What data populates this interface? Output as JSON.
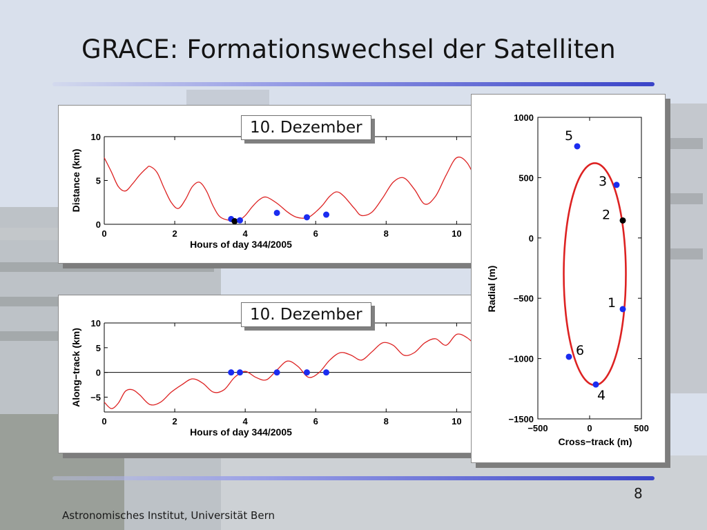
{
  "slide": {
    "title": "GRACE: Formationswechsel der Satelliten",
    "page_number": "8",
    "footer": "Astronomisches Institut, Universität Bern"
  },
  "colors": {
    "curve": "#dd2222",
    "marker_blue": "#1a2cf0",
    "marker_black": "#000000",
    "accent_rule": "#3a44c8"
  },
  "chart_data": [
    {
      "type": "line",
      "label": "10. Dezember",
      "xlabel": "Hours of day 344/2005",
      "ylabel": "Distance (km)",
      "xlim": [
        0,
        10.6
      ],
      "ylim": [
        0,
        10
      ],
      "xticks": [
        0,
        2,
        4,
        6,
        8,
        10
      ],
      "yticks": [
        0,
        5,
        10
      ],
      "grid": false,
      "series": [
        {
          "x": [
            0,
            0.2,
            0.4,
            0.6,
            0.8,
            1.0,
            1.2,
            1.3,
            1.5,
            1.7,
            1.9,
            2.1,
            2.3,
            2.5,
            2.7,
            2.9,
            3.1,
            3.3,
            3.6,
            3.8,
            4.0,
            4.2,
            4.4,
            4.6,
            4.9,
            5.2,
            5.4,
            5.6,
            5.8,
            6.0,
            6.2,
            6.4,
            6.6,
            6.8,
            7.1,
            7.3,
            7.6,
            7.9,
            8.2,
            8.5,
            8.8,
            9.1,
            9.4,
            9.7,
            10.0,
            10.3,
            10.6
          ],
          "values": [
            7.6,
            6.0,
            4.3,
            3.8,
            4.6,
            5.6,
            6.4,
            6.6,
            5.9,
            4.1,
            2.5,
            1.8,
            2.8,
            4.3,
            4.8,
            3.8,
            2.0,
            0.8,
            0.4,
            0.4,
            1.0,
            2.0,
            2.8,
            3.1,
            2.4,
            1.4,
            0.9,
            0.7,
            0.8,
            1.4,
            2.2,
            3.2,
            3.7,
            3.2,
            1.8,
            1.0,
            1.4,
            3.0,
            4.8,
            5.3,
            4.0,
            2.3,
            3.2,
            5.6,
            7.6,
            7.0,
            4.6
          ]
        }
      ],
      "markers": [
        {
          "x": 3.6,
          "y": 0.6,
          "color": "blue"
        },
        {
          "x": 3.7,
          "y": 0.35,
          "color": "black"
        },
        {
          "x": 3.85,
          "y": 0.45,
          "color": "blue"
        },
        {
          "x": 4.9,
          "y": 1.3,
          "color": "blue"
        },
        {
          "x": 5.75,
          "y": 0.8,
          "color": "blue"
        },
        {
          "x": 6.3,
          "y": 1.1,
          "color": "blue"
        }
      ]
    },
    {
      "type": "line",
      "label": "10. Dezember",
      "xlabel": "Hours of day 344/2005",
      "ylabel": "Along−track (km)",
      "xlim": [
        0,
        10.6
      ],
      "ylim": [
        -8,
        10
      ],
      "xticks": [
        0,
        2,
        4,
        6,
        8,
        10
      ],
      "yticks": [
        -5,
        0,
        5,
        10
      ],
      "zero_line": true,
      "grid": false,
      "series": [
        {
          "x": [
            0,
            0.2,
            0.4,
            0.6,
            0.8,
            1.0,
            1.3,
            1.6,
            1.9,
            2.2,
            2.5,
            2.8,
            3.1,
            3.4,
            3.7,
            4.0,
            4.3,
            4.6,
            4.9,
            5.2,
            5.5,
            5.8,
            6.1,
            6.4,
            6.7,
            7.0,
            7.3,
            7.6,
            7.9,
            8.2,
            8.5,
            8.8,
            9.1,
            9.4,
            9.7,
            10.0,
            10.3,
            10.6
          ],
          "values": [
            -6.0,
            -7.3,
            -6.2,
            -3.8,
            -3.5,
            -4.5,
            -6.5,
            -6.0,
            -4.0,
            -2.5,
            -1.3,
            -2.2,
            -4.0,
            -3.5,
            -1.0,
            0.2,
            -1.0,
            -1.5,
            0.5,
            2.3,
            1.2,
            -1.0,
            0.0,
            2.5,
            4.0,
            3.5,
            2.5,
            4.2,
            6.0,
            5.5,
            3.5,
            4.0,
            6.0,
            6.8,
            5.5,
            7.7,
            7.0,
            5.0
          ]
        }
      ],
      "markers": [
        {
          "x": 3.6,
          "y": 0,
          "color": "blue"
        },
        {
          "x": 3.85,
          "y": 0,
          "color": "blue"
        },
        {
          "x": 4.9,
          "y": 0,
          "color": "blue"
        },
        {
          "x": 5.75,
          "y": 0,
          "color": "blue"
        },
        {
          "x": 6.3,
          "y": 0,
          "color": "blue"
        }
      ]
    },
    {
      "type": "line",
      "xlabel": "Cross−track (m)",
      "ylabel": "Radial (m)",
      "xlim": [
        -500,
        500
      ],
      "ylim": [
        -1500,
        1000
      ],
      "xticks": [
        -500,
        0,
        500
      ],
      "yticks": [
        -1500,
        -1000,
        -500,
        0,
        500,
        1000
      ],
      "grid": false,
      "ellipse": {
        "center_x": 50,
        "center_y": -300,
        "radius_x": 300,
        "radius_y": 920
      },
      "points": [
        {
          "label": "1",
          "x": 320,
          "y": -590,
          "color": "blue"
        },
        {
          "label": "2",
          "x": 320,
          "y": 145,
          "color": "black"
        },
        {
          "label": "3",
          "x": 260,
          "y": 440,
          "color": "blue"
        },
        {
          "label": "4",
          "x": 60,
          "y": -1215,
          "color": "blue"
        },
        {
          "label": "5",
          "x": -120,
          "y": 760,
          "color": "blue"
        },
        {
          "label": "6",
          "x": -200,
          "y": -985,
          "color": "blue"
        }
      ]
    }
  ]
}
